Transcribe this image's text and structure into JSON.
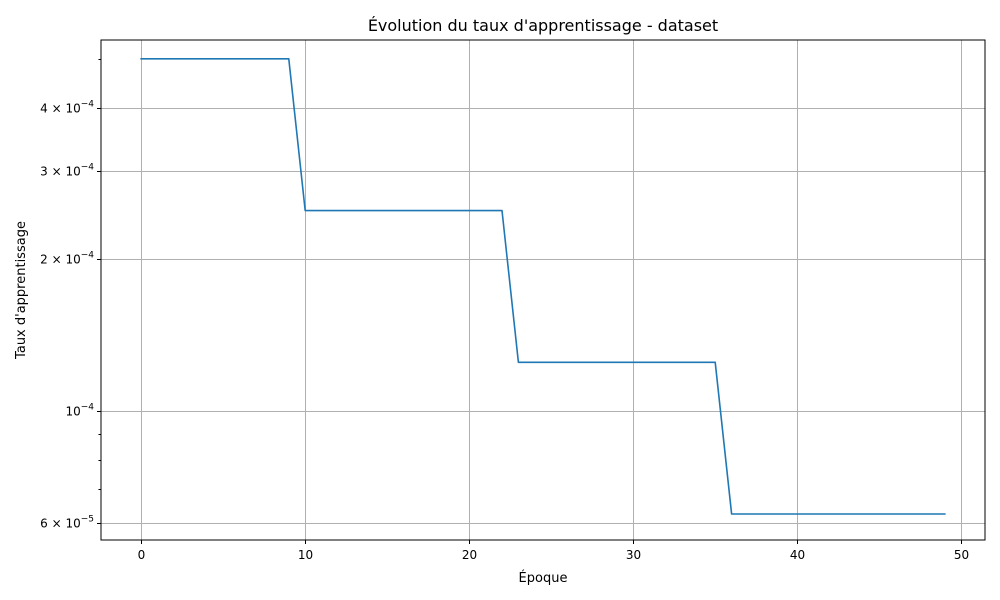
{
  "chart_data": {
    "type": "line",
    "title": "Évolution du taux d'apprentissage - dataset",
    "xlabel": "Époque",
    "ylabel": "Taux d'apprentissage",
    "xlim": [
      -2.45,
      51.45
    ],
    "ylim": [
      5.55e-05,
      0.000545
    ],
    "yscale": "log",
    "grid": true,
    "line_color": "#1f77b4",
    "x_ticks": [
      0,
      10,
      20,
      30,
      40,
      50
    ],
    "x_tick_labels": [
      "0",
      "10",
      "20",
      "30",
      "40",
      "50"
    ],
    "y_major_ticks": [
      {
        "value": 6e-05,
        "mantissa": "6 × 10",
        "exponent": "−5"
      },
      {
        "value": 0.0001,
        "mantissa": "10",
        "exponent": "−4"
      },
      {
        "value": 0.0002,
        "mantissa": "2 × 10",
        "exponent": "−4"
      },
      {
        "value": 0.0003,
        "mantissa": "3 × 10",
        "exponent": "−4"
      },
      {
        "value": 0.0004,
        "mantissa": "4 × 10",
        "exponent": "−4"
      }
    ],
    "y_minor_ticks": [
      7e-05,
      8e-05,
      9e-05,
      0.0005
    ],
    "series": [
      {
        "x": [
          0,
          1,
          2,
          3,
          4,
          5,
          6,
          7,
          8,
          9,
          10,
          11,
          12,
          13,
          14,
          15,
          16,
          17,
          18,
          19,
          20,
          21,
          22,
          23,
          24,
          25,
          26,
          27,
          28,
          29,
          30,
          31,
          32,
          33,
          34,
          35,
          36,
          37,
          38,
          39,
          40,
          41,
          42,
          43,
          44,
          45,
          46,
          47,
          48,
          49
        ],
        "values": [
          0.0005,
          0.0005,
          0.0005,
          0.0005,
          0.0005,
          0.0005,
          0.0005,
          0.0005,
          0.0005,
          0.0005,
          0.00025,
          0.00025,
          0.00025,
          0.00025,
          0.00025,
          0.00025,
          0.00025,
          0.00025,
          0.00025,
          0.00025,
          0.00025,
          0.00025,
          0.00025,
          0.000125,
          0.000125,
          0.000125,
          0.000125,
          0.000125,
          0.000125,
          0.000125,
          0.000125,
          0.000125,
          0.000125,
          0.000125,
          0.000125,
          0.000125,
          6.25e-05,
          6.25e-05,
          6.25e-05,
          6.25e-05,
          6.25e-05,
          6.25e-05,
          6.25e-05,
          6.25e-05,
          6.25e-05,
          6.25e-05,
          6.25e-05,
          6.25e-05,
          6.25e-05,
          6.25e-05
        ]
      }
    ]
  }
}
